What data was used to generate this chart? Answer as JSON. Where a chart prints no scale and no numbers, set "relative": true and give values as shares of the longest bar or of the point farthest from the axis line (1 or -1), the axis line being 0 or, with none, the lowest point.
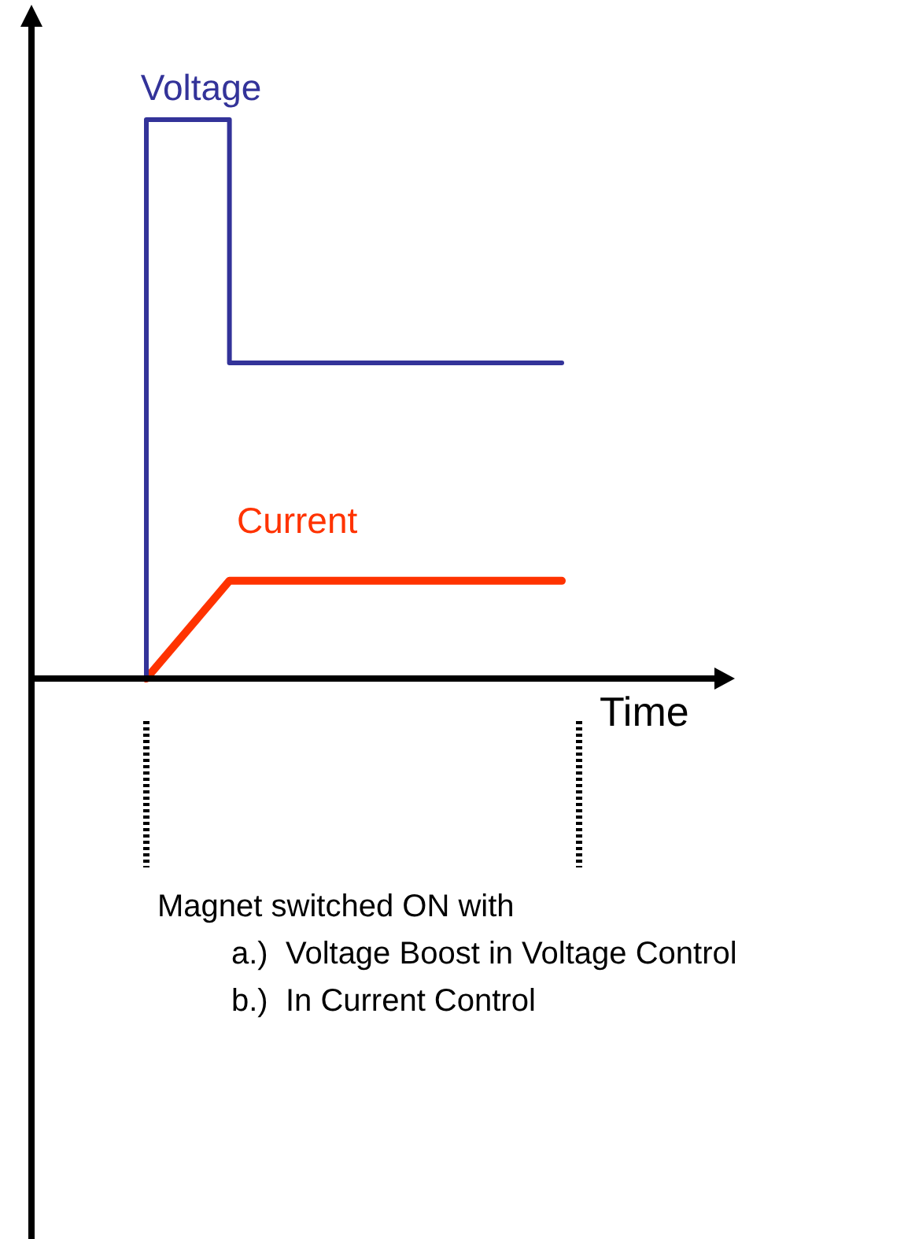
{
  "chart_data": {
    "type": "line",
    "relative": true,
    "xlabel": "Time",
    "categories": [
      null,
      null,
      null,
      null,
      null,
      null
    ],
    "legend": false,
    "grid": false,
    "marker": "none",
    "series": [
      {
        "name": "Voltage",
        "type": "step",
        "color": "#333399",
        "values": [
          0,
          1,
          0.565,
          0.565,
          0.565,
          0.565
        ]
      },
      {
        "name": "Current",
        "type": "line",
        "color": "#ff3300",
        "values": [
          0,
          0.175,
          0.175,
          0.175,
          0.175,
          0.175
        ]
      }
    ],
    "annotations": [
      "Magnet switched ON with",
      "a.)  Voltage Boost in Voltage Control",
      "b.)  In Current Control"
    ]
  }
}
